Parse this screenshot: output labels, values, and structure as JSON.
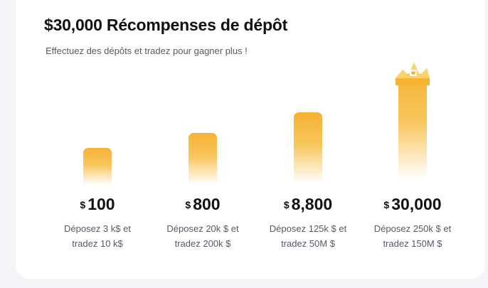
{
  "header": {
    "title": "$30,000 Récompenses de dépôt",
    "subtitle": "Effectuez des dépôts et tradez pour gagner plus !"
  },
  "tiers": [
    {
      "currency": "$",
      "amount": "100",
      "desc_line1": "Déposez 3 k$ et",
      "desc_line2": "tradez 10 k$"
    },
    {
      "currency": "$",
      "amount": "800",
      "desc_line1": "Déposez 20k $ et",
      "desc_line2": "tradez 200k $"
    },
    {
      "currency": "$",
      "amount": "8,800",
      "desc_line1": "Déposez 125k $ et",
      "desc_line2": "tradez 50M $"
    },
    {
      "currency": "$",
      "amount": "30,000",
      "desc_line1": "Déposez 250k $ et",
      "desc_line2": "tradez 150M $"
    }
  ],
  "colors": {
    "accent": "#f6b234",
    "text": "#111111",
    "muted": "#555a66",
    "background": "#f4f5f8",
    "card": "#ffffff"
  },
  "icons": {
    "top_tier": "crown-icon"
  }
}
